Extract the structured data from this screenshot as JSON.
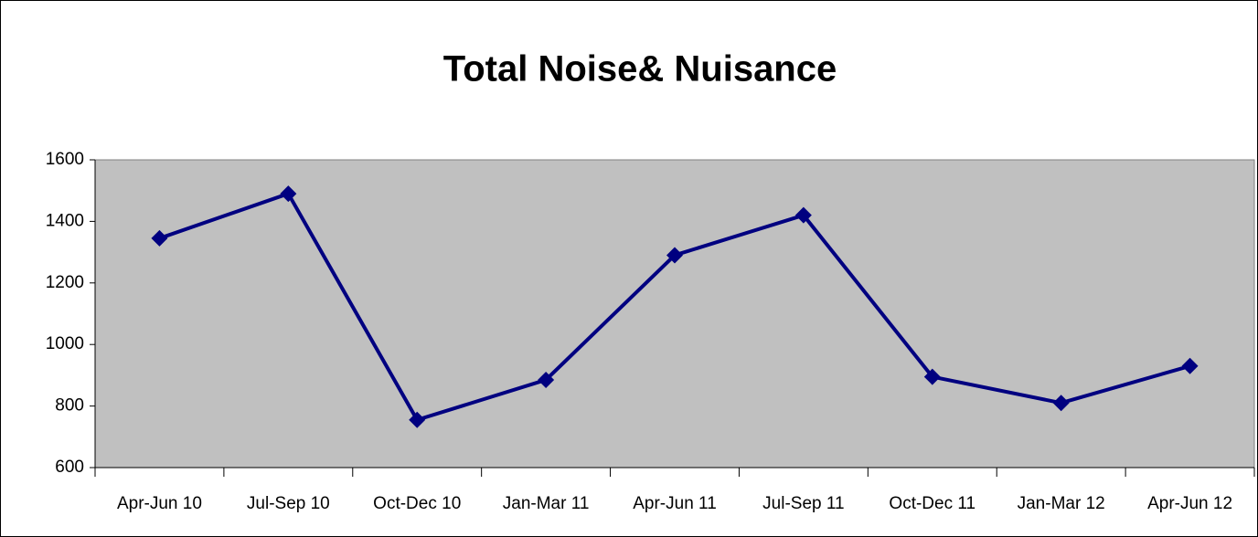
{
  "chart_data": {
    "type": "line",
    "title": "Total Noise& Nuisance",
    "categories": [
      "Apr-Jun 10",
      "Jul-Sep 10",
      "Oct-Dec 10",
      "Jan-Mar 11",
      "Apr-Jun 11",
      "Jul-Sep 11",
      "Oct-Dec 11",
      "Jan-Mar 12",
      "Apr-Jun 12"
    ],
    "values": [
      1345,
      1490,
      755,
      885,
      1290,
      1420,
      895,
      810,
      930
    ],
    "color": "#000080",
    "ylim": [
      600,
      1600
    ],
    "yticks": [
      600,
      800,
      1000,
      1200,
      1400,
      1600
    ],
    "grid": false
  }
}
